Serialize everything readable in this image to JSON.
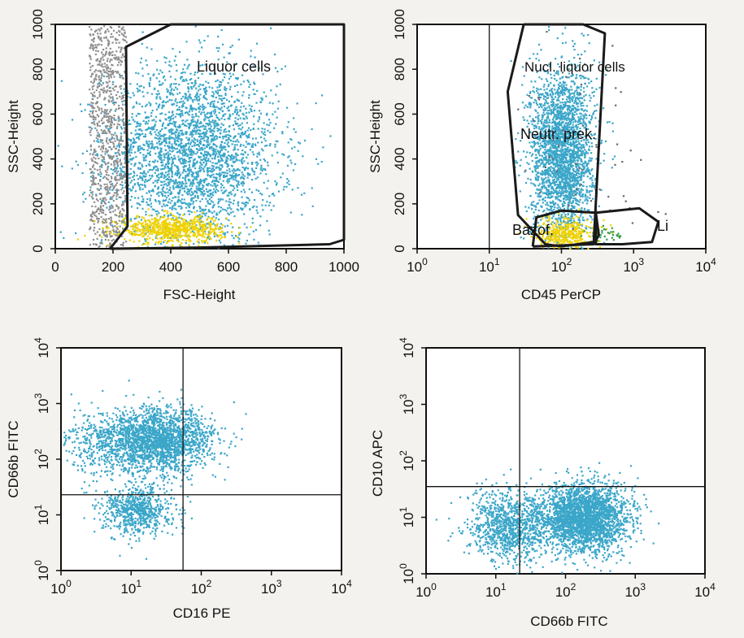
{
  "chart_data": [
    {
      "type": "scatter",
      "xlabel": "FSC-Height",
      "ylabel": "SSC-Height",
      "xscale": "linear",
      "yscale": "linear",
      "xlim": [
        0,
        1000
      ],
      "ylim": [
        0,
        1000
      ],
      "xticks": [
        "0",
        "200",
        "400",
        "600",
        "800",
        "1000"
      ],
      "yticks": [
        "0",
        "200",
        "400",
        "600",
        "800",
        "1000"
      ],
      "annotations": [
        "Liquor cells"
      ],
      "gates": [
        {
          "label": "Liquor cells",
          "polygon": [
            [
              190,
              0
            ],
            [
              250,
              100
            ],
            [
              245,
              900
            ],
            [
              400,
              1000
            ],
            [
              1000,
              1000
            ],
            [
              1000,
              40
            ],
            [
              950,
              20
            ],
            [
              500,
              5
            ],
            [
              190,
              0
            ]
          ]
        }
      ],
      "series": [
        {
          "color": "#3ba6c9",
          "points": 3000,
          "x_center": 470,
          "y_center": 420,
          "x_spread": 150,
          "y_spread": 200
        },
        {
          "color": "#f0d200",
          "points": 700,
          "x_center": 400,
          "y_center": 90,
          "x_spread": 90,
          "y_spread": 30
        },
        {
          "color": "#8f8f8f",
          "points": 900,
          "x_range": [
            115,
            245
          ],
          "y_range": [
            0,
            1000
          ]
        }
      ],
      "grid": false
    },
    {
      "type": "scatter",
      "xlabel": "CD45 PerCP",
      "ylabel": "SSC-Height",
      "xscale": "log",
      "yscale": "linear",
      "xlim": [
        1,
        10000
      ],
      "ylim": [
        0,
        1000
      ],
      "xticks": [
        "10^0",
        "10^1",
        "10^2",
        "10^3",
        "10^4"
      ],
      "yticks": [
        "0",
        "200",
        "400",
        "600",
        "800",
        "1000"
      ],
      "annotations": [
        "Nucl. liquor cells",
        "Neutr. prek.",
        "Bazof.",
        "Li"
      ],
      "quadrant_x": 10,
      "gates": [
        {
          "label": "Nucl. liquor cells",
          "polygon": [
            [
              30,
              1000
            ],
            [
              200,
              1000
            ],
            [
              400,
              960
            ],
            [
              280,
              30
            ],
            [
              100,
              10
            ],
            [
              60,
              20
            ],
            [
              25,
              150
            ],
            [
              18,
              700
            ],
            [
              30,
              1000
            ]
          ]
        },
        {
          "label": "Bazof.",
          "polygon": [
            [
              40,
              10
            ],
            [
              280,
              20
            ],
            [
              330,
              60
            ],
            [
              300,
              160
            ],
            [
              100,
              170
            ],
            [
              45,
              140
            ],
            [
              40,
              10
            ]
          ]
        },
        {
          "label": "Li",
          "polygon": [
            [
              300,
              160
            ],
            [
              1200,
              180
            ],
            [
              2200,
              120
            ],
            [
              1800,
              30
            ],
            [
              700,
              20
            ],
            [
              300,
              20
            ],
            [
              300,
              160
            ]
          ]
        }
      ],
      "series": [
        {
          "color": "#3ba6c9",
          "points": 2600,
          "x_center_log": 2.0,
          "y_center": 430,
          "x_spread_log": 0.22,
          "y_spread": 190
        },
        {
          "color": "#f0d200",
          "points": 400,
          "x_center_log": 2.05,
          "y_center": 70,
          "x_spread_log": 0.2,
          "y_spread": 35
        },
        {
          "color": "#2e9c4a",
          "points": 30,
          "x_center_log": 2.6,
          "y_center": 70,
          "x_spread_log": 0.12,
          "y_spread": 20
        },
        {
          "color": "#666666",
          "points": 60,
          "x_center_log": 2.4,
          "y_center": 420,
          "x_spread_log": 0.5,
          "y_spread": 260
        }
      ],
      "grid": false
    },
    {
      "type": "scatter",
      "xlabel": "CD16 PE",
      "ylabel": "CD66b FITC",
      "xscale": "log",
      "yscale": "log",
      "xlim": [
        1,
        10000
      ],
      "ylim": [
        1,
        10000
      ],
      "xticks": [
        "10^0",
        "10^1",
        "10^2",
        "10^3",
        "10^4"
      ],
      "yticks": [
        "10^0",
        "10^1",
        "10^2",
        "10^3",
        "10^4"
      ],
      "quadrant_x": 55,
      "quadrant_y": 23,
      "series": [
        {
          "color": "#3ba6c9",
          "points": 2000,
          "x_center_log": 1.4,
          "y_center_log": 2.35,
          "x_spread_log": 0.38,
          "y_spread_log": 0.28
        },
        {
          "color": "#3ba6c9",
          "points": 700,
          "x_center_log": 1.1,
          "y_center_log": 1.1,
          "x_spread_log": 0.25,
          "y_spread_log": 0.22
        },
        {
          "color": "#3ba6c9",
          "points": 400,
          "x_center_log": 0.6,
          "y_center_log": 2.3,
          "x_spread_log": 0.35,
          "y_spread_log": 0.3
        }
      ],
      "grid": false
    },
    {
      "type": "scatter",
      "xlabel": "CD66b FITC",
      "ylabel": "CD10 APC",
      "xscale": "log",
      "yscale": "log",
      "xlim": [
        1,
        10000
      ],
      "ylim": [
        1,
        10000
      ],
      "xticks": [
        "10^0",
        "10^1",
        "10^2",
        "10^3",
        "10^4"
      ],
      "yticks": [
        "10^0",
        "10^1",
        "10^2",
        "10^3",
        "10^4"
      ],
      "quadrant_x": 22,
      "quadrant_y": 35,
      "series": [
        {
          "color": "#3ba6c9",
          "points": 2700,
          "x_center_log": 2.25,
          "y_center_log": 1.0,
          "x_spread_log": 0.32,
          "y_spread_log": 0.3
        },
        {
          "color": "#3ba6c9",
          "points": 1000,
          "x_center_log": 1.2,
          "y_center_log": 0.85,
          "x_spread_log": 0.3,
          "y_spread_log": 0.3
        }
      ],
      "grid": false
    }
  ]
}
